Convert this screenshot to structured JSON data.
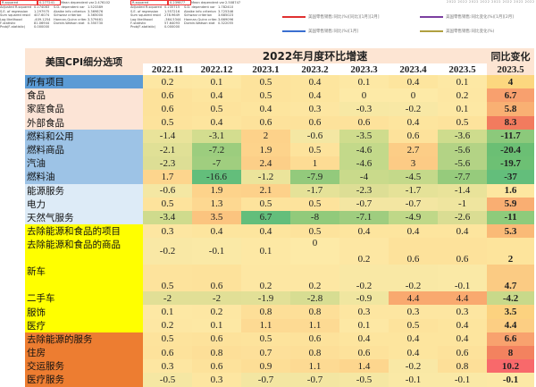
{
  "top_strip": {
    "left_panel": {
      "rows": [
        [
          "R-squared",
          "0.277241",
          "Mean dependent var",
          "2.476102"
        ],
        [
          "Adjusted R-squared",
          "0.274083",
          "S.D. dependent var",
          "1.523389"
        ],
        [
          "S.E. of regression",
          "1.297975",
          "Akaike info criterion",
          "3.369876"
        ],
        [
          "Sum squared resid",
          "407.6074",
          "Schwarz criterion",
          "3.365000"
        ],
        [
          "Log likelihood",
          "-409.1254",
          "Hannan-Quinn criter.",
          "3.379461"
        ],
        [
          "F-statistic",
          "81.06944",
          "Durbin-Watson stat",
          "0.350730"
        ],
        [
          "Prob(F-statistic)",
          "0.000000",
          "",
          ""
        ]
      ]
    },
    "right_panel": {
      "rows": [
        [
          "R-squared",
          "0.239877",
          "Mean dependent var",
          "2.508747"
        ],
        [
          "Adjusted R-squared",
          "0.235715",
          "S.D. dependent var",
          "1.782410"
        ],
        [
          "S.E. of regression",
          "1.557216",
          "Akaike info criterion",
          "3.725346"
        ],
        [
          "Sum squared resid",
          "278.9649",
          "Schwarz criterion",
          "3.685023"
        ],
        [
          "Log likelihood",
          "-364.5344",
          "Hannan-Quinn criter.",
          "3.669096"
        ],
        [
          "F-statistic",
          "57.64093",
          "Durbin-Watson stat",
          "0.322055"
        ],
        [
          "Prob(F-statistic)",
          "0.000000",
          "",
          ""
        ]
      ]
    },
    "legends": [
      {
        "label": "美国零售销售:同比(%)[同比][1月][2月]",
        "color": "#e03030"
      },
      {
        "label": "美国零售销售:同比(%)[1月]",
        "color": "#3a6fd0"
      },
      {
        "label": "美国零售销售:同比变化(%)[1月][2月]",
        "color": "#7b3fa0"
      },
      {
        "label": "美国零售销售:同比变化(%)",
        "color": "#b0a040"
      }
    ],
    "corner_text": "2022 2022 2022 2022 2022 2022 2022 2022"
  },
  "table": {
    "name_header": "美国CPI细分选项",
    "group_title": "2022年月度环比增速",
    "yoy_title": "同比变化",
    "months": [
      "2022.11",
      "2022.12",
      "2023.1",
      "2023.2",
      "2023.3",
      "2023.4",
      "2023.5"
    ],
    "yoy_month": "2023.5",
    "rows": [
      {
        "name": "所有项目",
        "name_bg": "#5b9bd5",
        "values": [
          "0.2",
          "0.1",
          "0.5",
          "0.4",
          "0.1",
          "0.4",
          "0.1"
        ],
        "bgs": [
          "#fde7a3",
          "#fde8a4",
          "#fde39c",
          "#fde59e",
          "#fde8a4",
          "#fde59e",
          "#fde8a4"
        ],
        "yoy": "4",
        "yoy_bg": "#fcd77f"
      },
      {
        "name": "食品",
        "name_bg": "#fce4d6",
        "values": [
          "0.6",
          "0.4",
          "0.5",
          "0.4",
          "0",
          "0",
          "0.2"
        ],
        "bgs": [
          "#fde29b",
          "#fde59e",
          "#fde39c",
          "#fde59e",
          "#fdeaa7",
          "#fdeaa7",
          "#fde7a3"
        ],
        "yoy": "6.7",
        "yoy_bg": "#f8a06e"
      },
      {
        "name": "家庭食品",
        "name_bg": "#fce4d6",
        "values": [
          "0.6",
          "0.5",
          "0.4",
          "0.3",
          "-0.3",
          "-0.2",
          "0.1"
        ],
        "bgs": [
          "#fde29b",
          "#fde39c",
          "#fde59e",
          "#fde6a1",
          "#f7e8a4",
          "#f8e8a5",
          "#fde8a4"
        ],
        "yoy": "5.8",
        "yoy_bg": "#f9b073"
      },
      {
        "name": "外部食品",
        "name_bg": "#fce4d6",
        "values": [
          "0.5",
          "0.4",
          "0.6",
          "0.6",
          "0.6",
          "0.4",
          "0.5"
        ],
        "bgs": [
          "#fde39c",
          "#fde59e",
          "#fde29b",
          "#fde29b",
          "#fde29b",
          "#fde59e",
          "#fde39c"
        ],
        "yoy": "8.3",
        "yoy_bg": "#f27b5e"
      },
      {
        "name": "燃料和公用",
        "name_bg": "#9dc3e6",
        "values": [
          "-1.4",
          "-3.1",
          "2",
          "-0.6",
          "-3.5",
          "0.6",
          "-3.6"
        ],
        "bgs": [
          "#e9e39a",
          "#d3dd8f",
          "#fdd28a",
          "#f4e7a3",
          "#cfdc8d",
          "#fde29b",
          "#cedc8d"
        ],
        "yoy": "-11.7",
        "yoy_bg": "#8cc97b"
      },
      {
        "name": "燃料商品",
        "name_bg": "#9dc3e6",
        "values": [
          "-2.1",
          "-7.2",
          "1.9",
          "0.5",
          "-4.6",
          "2.7",
          "-5.6"
        ],
        "bgs": [
          "#e0e096",
          "#9ccd7e",
          "#fdd38b",
          "#fde39c",
          "#c3d98a",
          "#fccd86",
          "#b3d385"
        ],
        "yoy": "-20.4",
        "yoy_bg": "#6bbf74"
      },
      {
        "name": "汽油",
        "name_bg": "#9dc3e6",
        "values": [
          "-2.3",
          "-7",
          "2.4",
          "1",
          "-4.6",
          "3",
          "-5.6"
        ],
        "bgs": [
          "#ddde95",
          "#a0ce7f",
          "#fccf88",
          "#fddc94",
          "#c3d98a",
          "#fccb85",
          "#b3d385"
        ],
        "yoy": "-19.7",
        "yoy_bg": "#6dc074"
      },
      {
        "name": "燃料油",
        "name_bg": "#9dc3e6",
        "values": [
          "1.7",
          "-16.6",
          "-1.2",
          "-7.9",
          "-4",
          "-4.5",
          "-7.7"
        ],
        "bgs": [
          "#fdd58d",
          "#63be7b",
          "#ebe49b",
          "#93ca7c",
          "#c9da8b",
          "#c4d98a",
          "#96cb7c"
        ],
        "yoy": "-37",
        "yoy_bg": "#63be7b"
      },
      {
        "name": "能源服务",
        "name_bg": "#ddebf7",
        "values": [
          "-0.6",
          "1.9",
          "2.1",
          "-1.7",
          "-2.3",
          "-1.7",
          "-1.4"
        ],
        "bgs": [
          "#f4e7a3",
          "#fdd38b",
          "#fdd18a",
          "#e5e298",
          "#ddde95",
          "#e5e298",
          "#e9e39a"
        ],
        "yoy": "1.6",
        "yoy_bg": "#fde7a0"
      },
      {
        "name": "电力",
        "name_bg": "#ddebf7",
        "values": [
          "0.5",
          "1.3",
          "0.5",
          "0.5",
          "-0.7",
          "-0.7",
          "-1"
        ],
        "bgs": [
          "#fde39c",
          "#fdd891",
          "#fde39c",
          "#fde39c",
          "#f3e6a2",
          "#f3e6a2",
          "#efe59f"
        ],
        "yoy": "5.9",
        "yoy_bg": "#f9ae72"
      },
      {
        "name": "天然气服务",
        "name_bg": "#ddebf7",
        "values": [
          "-3.4",
          "3.5",
          "6.7",
          "-8",
          "-7.1",
          "-4.9",
          "-2.6"
        ],
        "bgs": [
          "#cfdb8d",
          "#fbc47f",
          "#63be7b",
          "#91ca7b",
          "#9fcd7f",
          "#bfd888",
          "#dadd93"
        ],
        "yoy": "-11",
        "yoy_bg": "#8ecb7b"
      },
      {
        "name": "去除能源和食品的项目",
        "name_bg": "#ffff00",
        "values": [
          "0.3",
          "0.4",
          "0.4",
          "0.5",
          "0.4",
          "0.4",
          "0.4"
        ],
        "bgs": [
          "#fde6a1",
          "#fde59e",
          "#fde59e",
          "#fde39c",
          "#fde59e",
          "#fde59e",
          "#fde59e"
        ],
        "yoy": "5.3",
        "yoy_bg": "#faba77"
      },
      {
        "name": "去除能源和食品的商品",
        "name_bg": "#ffff00",
        "values": [
          "-0.2",
          "-0.1",
          "0.1",
          "0",
          "0.2",
          "0.6",
          "0.6"
        ],
        "bgs": [
          "#f9e8a5",
          "#fae9a6",
          "#fde8a4",
          "#fdeaa7",
          "#fde7a3",
          "#fde29b",
          "#fde29b"
        ],
        "yoy": "2",
        "yoy_bg": "#fde49c",
        "tall": true,
        "offsets": [
          "mid",
          "mid",
          "mid",
          "up",
          "low",
          "low",
          "low",
          "low"
        ]
      },
      {
        "name": "新车",
        "name_bg": "#ffff00",
        "values": [
          "0.5",
          "0.6",
          "0.2",
          "0.2",
          "-0.2",
          "-0.2",
          "-0.1"
        ],
        "bgs": [
          "#fde39c",
          "#fde29b",
          "#fde7a3",
          "#fde7a3",
          "#f9e8a5",
          "#f9e8a5",
          "#fae9a6"
        ],
        "yoy": "4.7",
        "yoy_bg": "#fbcb83",
        "tall": true,
        "offsets": [
          "low",
          "low",
          "low",
          "low",
          "low",
          "low",
          "low",
          "low"
        ]
      },
      {
        "name": "二手车",
        "name_bg": "#ffff00",
        "values": [
          "-2",
          "-2",
          "-1.9",
          "-2.8",
          "-0.9",
          "4.4",
          "4.4"
        ],
        "bgs": [
          "#e1df96",
          "#e1df96",
          "#e2e097",
          "#d7dd92",
          "#f0e6a0",
          "#f9a96f",
          "#f9a96f"
        ],
        "yoy": "-4.2",
        "yoy_bg": "#c8d98a"
      },
      {
        "name": "服饰",
        "name_bg": "#ffff00",
        "values": [
          "0.1",
          "0.2",
          "0.8",
          "0.8",
          "0.3",
          "0.3",
          "0.3"
        ],
        "bgs": [
          "#fde8a4",
          "#fde7a3",
          "#fddf98",
          "#fddf98",
          "#fde6a1",
          "#fde6a1",
          "#fde6a1"
        ],
        "yoy": "3.5",
        "yoy_bg": "#fcd27f"
      },
      {
        "name": "医疗",
        "name_bg": "#ffff00",
        "values": [
          "0.2",
          "0.1",
          "1.1",
          "1.1",
          "0.1",
          "0.5",
          "0.4"
        ],
        "bgs": [
          "#fde7a3",
          "#fde8a4",
          "#fdda93",
          "#fdda93",
          "#fde8a4",
          "#fde39c",
          "#fde59e"
        ],
        "yoy": "4.4",
        "yoy_bg": "#fcce83"
      },
      {
        "name": "去除能源的服务",
        "name_bg": "#ed7d31",
        "values": [
          "0.5",
          "0.6",
          "0.5",
          "0.6",
          "0.4",
          "0.4",
          "0.4"
        ],
        "bgs": [
          "#fde39c",
          "#fde29b",
          "#fde39c",
          "#fde29b",
          "#fde59e",
          "#fde59e",
          "#fde59e"
        ],
        "yoy": "6.6",
        "yoy_bg": "#f8a26e"
      },
      {
        "name": "住房",
        "name_bg": "#ed7d31",
        "values": [
          "0.6",
          "0.8",
          "0.7",
          "0.8",
          "0.6",
          "0.4",
          "0.6"
        ],
        "bgs": [
          "#fde29b",
          "#fddf98",
          "#fde09a",
          "#fddf98",
          "#fde29b",
          "#fde59e",
          "#fde29b"
        ],
        "yoy": "8",
        "yoy_bg": "#f3825f"
      },
      {
        "name": "交运服务",
        "name_bg": "#ed7d31",
        "values": [
          "0.3",
          "0.6",
          "0.9",
          "1.1",
          "1.4",
          "-0.2",
          "0.8"
        ],
        "bgs": [
          "#fde6a1",
          "#fde29b",
          "#fdde96",
          "#fdda93",
          "#fdd68e",
          "#f9e8a5",
          "#fddf98"
        ],
        "yoy": "10.2",
        "yoy_bg": "#f8696b"
      },
      {
        "name": "医疗服务",
        "name_bg": "#ed7d31",
        "values": [
          "-0.5",
          "0.3",
          "-0.7",
          "-0.7",
          "-0.5",
          "-0.1",
          "-0.1"
        ],
        "bgs": [
          "#f5e7a3",
          "#fde6a1",
          "#f3e6a2",
          "#f3e6a2",
          "#f5e7a3",
          "#fae9a6",
          "#fae9a6"
        ],
        "yoy": "-0.1",
        "yoy_bg": "#fce9a6"
      }
    ]
  }
}
